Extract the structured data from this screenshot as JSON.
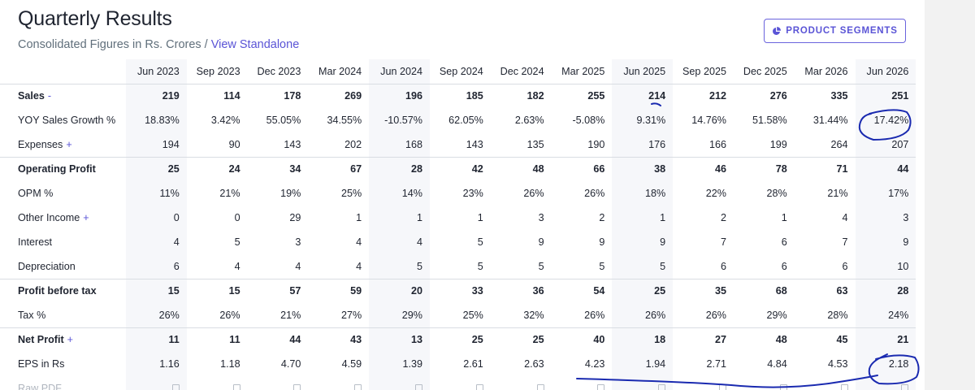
{
  "header": {
    "title": "Quarterly Results",
    "subtitle_text": "Consolidated Figures in Rs. Crores",
    "separator": "/",
    "view_standalone_link": "View Standalone",
    "segments_button": "PRODUCT SEGMENTS"
  },
  "table": {
    "columns": [
      "Jun 2023",
      "Sep 2023",
      "Dec 2023",
      "Mar 2024",
      "Jun 2024",
      "Sep 2024",
      "Dec 2024",
      "Mar 2025",
      "Jun 2025",
      "Sep 2025",
      "Dec 2025",
      "Mar 2026",
      "Jun 2026"
    ],
    "rows": [
      {
        "label": "Sales",
        "toggle": "-",
        "values": [
          "219",
          "114",
          "178",
          "269",
          "196",
          "185",
          "182",
          "255",
          "214",
          "212",
          "276",
          "335",
          "251"
        ]
      },
      {
        "label": "YOY Sales Growth %",
        "values": [
          "18.83%",
          "3.42%",
          "55.05%",
          "34.55%",
          "-10.57%",
          "62.05%",
          "2.63%",
          "-5.08%",
          "9.31%",
          "14.76%",
          "51.58%",
          "31.44%",
          "17.42%"
        ]
      },
      {
        "label": "Expenses",
        "toggle": "+",
        "values": [
          "194",
          "90",
          "143",
          "202",
          "168",
          "143",
          "135",
          "190",
          "176",
          "166",
          "199",
          "264",
          "207"
        ]
      },
      {
        "label": "Operating Profit",
        "values": [
          "25",
          "24",
          "34",
          "67",
          "28",
          "42",
          "48",
          "66",
          "38",
          "46",
          "78",
          "71",
          "44"
        ]
      },
      {
        "label": "OPM %",
        "values": [
          "11%",
          "21%",
          "19%",
          "25%",
          "14%",
          "23%",
          "26%",
          "26%",
          "18%",
          "22%",
          "28%",
          "21%",
          "17%"
        ]
      },
      {
        "label": "Other Income",
        "toggle": "+",
        "values": [
          "0",
          "0",
          "29",
          "1",
          "1",
          "1",
          "3",
          "2",
          "1",
          "2",
          "1",
          "4",
          "3"
        ]
      },
      {
        "label": "Interest",
        "values": [
          "4",
          "5",
          "3",
          "4",
          "4",
          "5",
          "9",
          "9",
          "9",
          "7",
          "6",
          "7",
          "9"
        ]
      },
      {
        "label": "Depreciation",
        "values": [
          "6",
          "4",
          "4",
          "4",
          "5",
          "5",
          "5",
          "5",
          "5",
          "6",
          "6",
          "6",
          "10"
        ]
      },
      {
        "label": "Profit before tax",
        "values": [
          "15",
          "15",
          "57",
          "59",
          "20",
          "33",
          "36",
          "54",
          "25",
          "35",
          "68",
          "63",
          "28"
        ]
      },
      {
        "label": "Tax %",
        "values": [
          "26%",
          "26%",
          "21%",
          "27%",
          "29%",
          "25%",
          "32%",
          "26%",
          "26%",
          "26%",
          "29%",
          "28%",
          "24%"
        ]
      },
      {
        "label": "Net Profit",
        "toggle": "+",
        "values": [
          "11",
          "11",
          "44",
          "43",
          "13",
          "25",
          "25",
          "40",
          "18",
          "27",
          "48",
          "45",
          "21"
        ]
      },
      {
        "label": "EPS in Rs",
        "values": [
          "1.16",
          "1.18",
          "4.70",
          "4.59",
          "1.39",
          "2.61",
          "2.63",
          "4.23",
          "1.94",
          "2.71",
          "4.84",
          "4.53",
          "2.18"
        ]
      },
      {
        "label": "Raw PDF"
      }
    ]
  },
  "colors": {
    "accent": "#5a54d6",
    "annotation_ink": "#1a2ab0",
    "highlight_column_bg": "#f6f7fa"
  }
}
